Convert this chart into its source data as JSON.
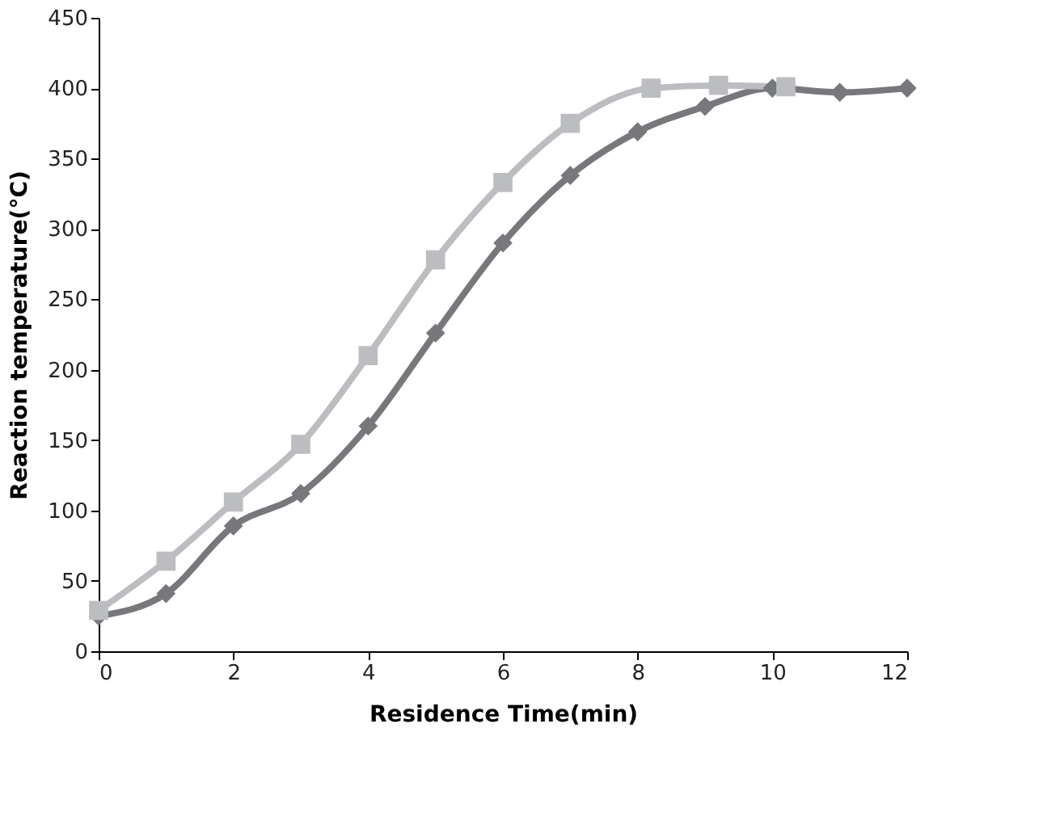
{
  "chart_data": {
    "type": "line",
    "xlabel": "Residence Time(min)",
    "ylabel": "Reaction temperature(°C)",
    "xlim": [
      0,
      12
    ],
    "xticks": [
      0,
      2,
      4,
      6,
      8,
      10,
      12
    ],
    "ylim": [
      0,
      450
    ],
    "yticks": [
      0,
      50,
      100,
      150,
      200,
      250,
      300,
      350,
      400,
      450
    ],
    "grid": false,
    "line_style": "solid",
    "series": [
      {
        "color": "#77787b",
        "marker": "diamond",
        "x": [
          0,
          1,
          2,
          3,
          4,
          5,
          6,
          7,
          8,
          9,
          10,
          11,
          12
        ],
        "values": [
          25,
          41,
          89,
          112,
          160,
          226,
          290,
          338,
          369,
          387,
          400,
          397,
          400
        ]
      },
      {
        "color": "#bcbdc0",
        "marker": "square",
        "x": [
          0,
          1,
          2,
          3,
          4,
          5,
          6,
          7,
          8.2,
          9.2,
          10.2
        ],
        "values": [
          29,
          64,
          106,
          147,
          210,
          278,
          333,
          375,
          400,
          402,
          401
        ]
      }
    ]
  }
}
